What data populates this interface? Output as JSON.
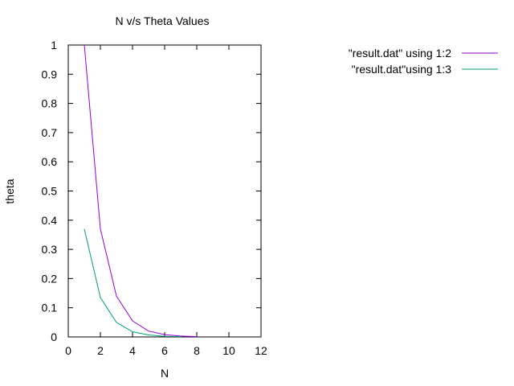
{
  "chart_data": {
    "type": "line",
    "title": "N v/s Theta Values",
    "xlabel": "N",
    "ylabel": "theta",
    "xlim": [
      0,
      12
    ],
    "ylim": [
      0,
      1
    ],
    "x_ticks": [
      0,
      2,
      4,
      6,
      8,
      10,
      12
    ],
    "y_ticks": [
      0,
      0.1,
      0.2,
      0.3,
      0.4,
      0.5,
      0.6,
      0.7,
      0.8,
      0.9,
      1
    ],
    "x_tick_labels": [
      "0",
      "2",
      "4",
      "6",
      "8",
      "10",
      "12"
    ],
    "y_tick_labels": [
      "0",
      "0.1",
      "0.2",
      "0.3",
      "0.4",
      "0.5",
      "0.6",
      "0.7",
      "0.8",
      "0.9",
      "1"
    ],
    "grid": false,
    "legend_position": "top-right, outside plot",
    "series": [
      {
        "name": "\"result.dat\" using 1:2",
        "color": "#9400d3",
        "x": [
          1,
          2,
          3,
          4,
          5,
          6,
          7,
          8
        ],
        "y": [
          1.0,
          0.37,
          0.14,
          0.055,
          0.02,
          0.008,
          0.003,
          0.001
        ]
      },
      {
        "name": "\"result.dat\"using 1:3",
        "color": "#009e73",
        "x": [
          1,
          2,
          3,
          4,
          5,
          6,
          7
        ],
        "y": [
          0.37,
          0.135,
          0.05,
          0.018,
          0.007,
          0.002,
          0.001
        ]
      }
    ]
  }
}
